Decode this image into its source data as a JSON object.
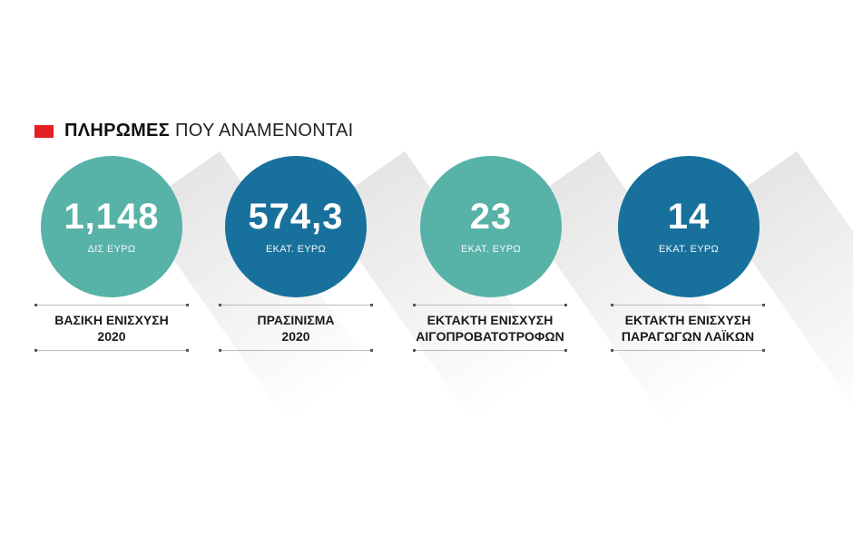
{
  "header": {
    "title_bold": "ΠΛΗΡΩΜΕΣ",
    "title_rest": "ΠΟΥ ΑΝΑΜΕΝΟΝΤΑΙ",
    "accent_color": "#e31e24"
  },
  "chart_data": {
    "type": "table",
    "title": "ΠΛΗΡΩΜΕΣ ΠΟΥ ΑΝΑΜΕΝΟΝΤΑΙ",
    "items": [
      {
        "value": "1,148",
        "unit": "ΔΙΣ ΕΥΡΩ",
        "label_line1": "ΒΑΣΙΚΗ ΕΝΙΣΧΥΣΗ",
        "label_line2": "2020",
        "color": "#57b2a8"
      },
      {
        "value": "574,3",
        "unit": "ΕΚΑΤ. ΕΥΡΩ",
        "label_line1": "ΠΡΑΣΙΝΙΣΜΑ",
        "label_line2": "2020",
        "color": "#17719c"
      },
      {
        "value": "23",
        "unit": "ΕΚΑΤ. ΕΥΡΩ",
        "label_line1": "ΕΚΤΑΚΤΗ ΕΝΙΣΧΥΣΗ",
        "label_line2": "ΑΙΓΟΠΡΟΒΑΤΟΤΡΟΦΩΝ",
        "color": "#57b2a8"
      },
      {
        "value": "14",
        "unit": "ΕΚΑΤ. ΕΥΡΩ",
        "label_line1": "ΕΚΤΑΚΤΗ ΕΝΙΣΧΥΣΗ",
        "label_line2": "ΠΑΡΑΓΩΓΩΝ ΛΑΪΚΩΝ",
        "color": "#17719c"
      }
    ]
  }
}
